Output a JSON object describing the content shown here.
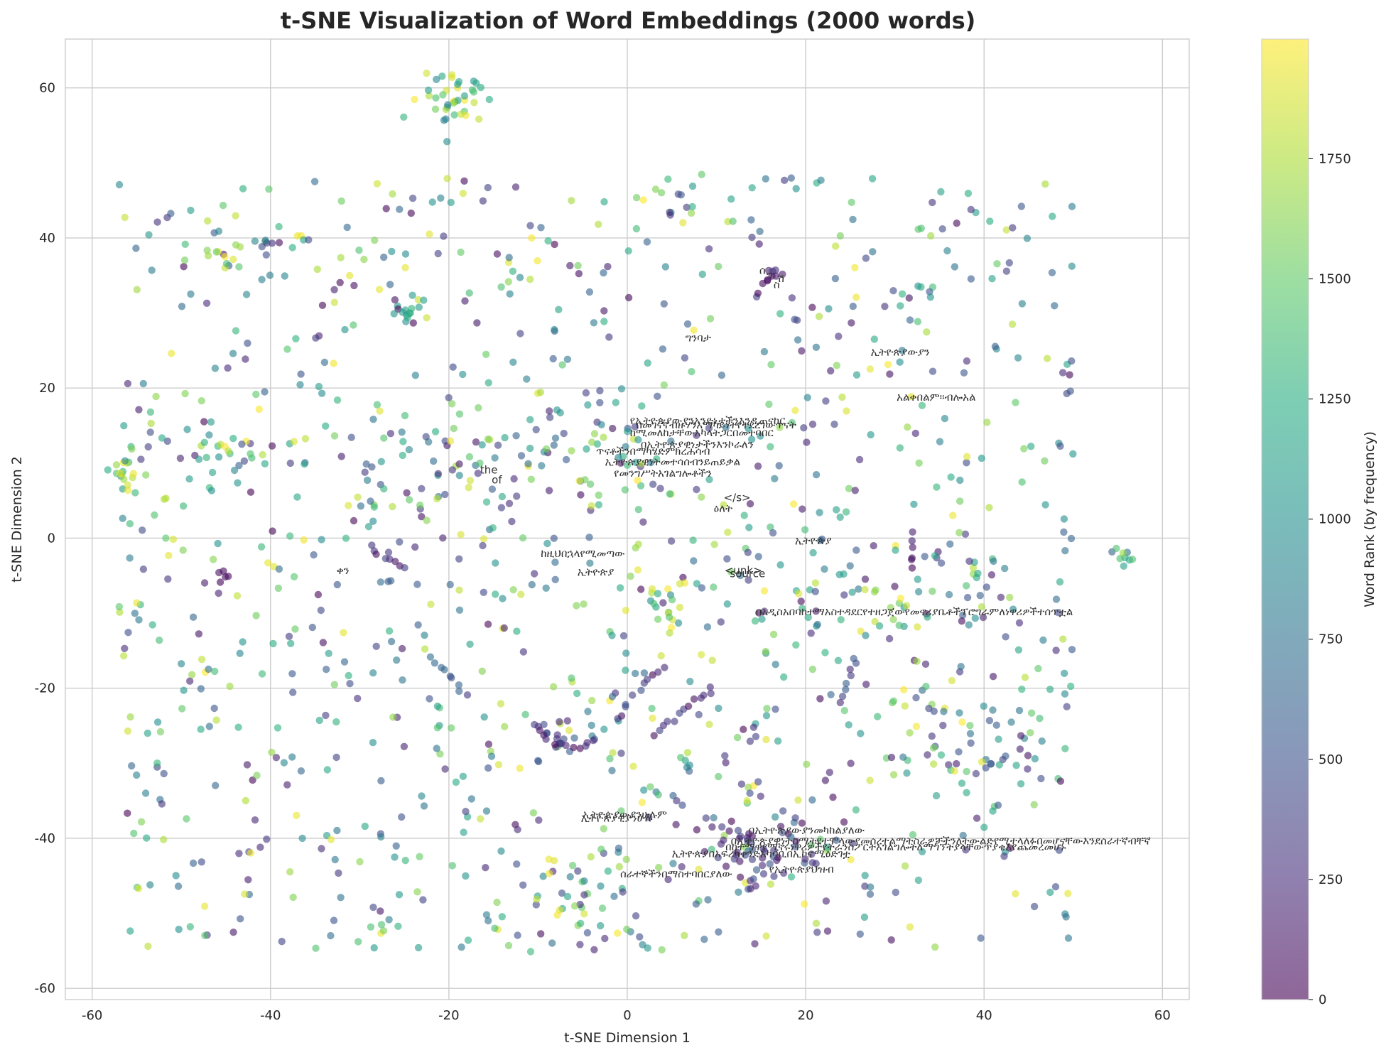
{
  "chart_data": {
    "type": "scatter",
    "title": "t-SNE Visualization of Word Embeddings (2000 words)",
    "xlabel": "t-SNE Dimension 1",
    "ylabel": "t-SNE Dimension 2",
    "xlim": [
      -63,
      63
    ],
    "ylim": [
      -61.5,
      66.5
    ],
    "xticks": [
      -60,
      -40,
      -20,
      0,
      20,
      40,
      60
    ],
    "xtick_labels": [
      "-60",
      "-40",
      "-20",
      "0",
      "20",
      "40",
      "60"
    ],
    "yticks": [
      -60,
      -40,
      -20,
      0,
      20,
      40,
      60
    ],
    "ytick_labels": [
      "-60",
      "-40",
      "-20",
      "0",
      "20",
      "40",
      "60"
    ],
    "grid": true,
    "colormap": "viridis",
    "point_alpha": 0.6,
    "colorbar": {
      "label": "Word Rank (by frequency)",
      "range": [
        0,
        1999
      ],
      "ticks": [
        0,
        250,
        500,
        750,
        1000,
        1250,
        1500,
        1750
      ],
      "tick_labels": [
        "0",
        "250",
        "500",
        "750",
        "1000",
        "1250",
        "1500",
        "1750"
      ]
    },
    "clusters": [
      {
        "x": -20,
        "y": 58,
        "n": 40,
        "spread": 2.2,
        "rank": [
          700,
          1999
        ]
      },
      {
        "x": -56,
        "y": 8.5,
        "n": 18,
        "spread": 1.2,
        "rank": [
          900,
          1999
        ]
      },
      {
        "x": -45,
        "y": 37.5,
        "n": 10,
        "spread": 1.0,
        "rank": [
          1300,
          1999
        ]
      },
      {
        "x": 55.5,
        "y": -2.5,
        "n": 9,
        "spread": 0.9,
        "rank": [
          600,
          1900
        ]
      },
      {
        "x": -24.5,
        "y": 30,
        "n": 12,
        "spread": 0.9,
        "rank": [
          1000,
          1300
        ]
      },
      {
        "x": -40,
        "y": 39.5,
        "n": 5,
        "spread": 0.6,
        "rank": [
          0,
          800
        ]
      },
      {
        "x": 15.5,
        "y": 34.5,
        "n": 8,
        "spread": 0.9,
        "rank": [
          0,
          200
        ]
      },
      {
        "x": 13,
        "y": -41.5,
        "n": 40,
        "spread": 2.8,
        "rank": [
          0,
          500
        ]
      },
      {
        "x": 17,
        "y": -42.5,
        "n": 20,
        "spread": 2.5,
        "rank": [
          0,
          700
        ]
      },
      {
        "x": 37,
        "y": -27,
        "n": 40,
        "spread": 3.8,
        "rank": [
          0,
          1999
        ]
      },
      {
        "x": -7,
        "y": -26,
        "n": 14,
        "spread": 1.5,
        "rank": [
          200,
          800
        ]
      },
      {
        "x": 4,
        "y": -10,
        "n": 20,
        "spread": 2.5,
        "rank": [
          800,
          1999
        ]
      },
      {
        "x": -20,
        "y": 11,
        "n": 30,
        "spread": 3.5,
        "rank": [
          0,
          1999
        ]
      },
      {
        "x": -4,
        "y": 12,
        "n": 40,
        "spread": 5.0,
        "rank": [
          0,
          1999
        ]
      },
      {
        "x": 37,
        "y": -5,
        "n": 30,
        "spread": 4.0,
        "rank": [
          0,
          1999
        ]
      },
      {
        "x": -45,
        "y": 11,
        "n": 12,
        "spread": 1.5,
        "rank": [
          1000,
          1999
        ]
      },
      {
        "x": -46,
        "y": -5,
        "n": 5,
        "spread": 0.8,
        "rank": [
          0,
          100
        ]
      },
      {
        "x": 6,
        "y": 46,
        "n": 10,
        "spread": 1.8,
        "rank": [
          0,
          1600
        ]
      },
      {
        "x": -4,
        "y": -47,
        "n": 30,
        "spread": 4.0,
        "rank": [
          0,
          1999
        ]
      },
      {
        "x": 20,
        "y": -8,
        "n": 25,
        "spread": 4.0,
        "rank": [
          0,
          1999
        ]
      }
    ],
    "scatter_regions": [
      {
        "x": [
          -57,
          50
        ],
        "y": [
          -55,
          48
        ],
        "n": 1100,
        "rank": [
          0,
          1999
        ]
      }
    ],
    "curves": [
      {
        "points": [
          [
            -10,
            -25
          ],
          [
            -9,
            -27
          ],
          [
            -7,
            -28
          ],
          [
            -5,
            -28
          ],
          [
            -4,
            -27
          ]
        ],
        "n": 12,
        "rank": [
          0,
          300
        ]
      },
      {
        "points": [
          [
            -1,
            -24
          ],
          [
            0,
            -22
          ],
          [
            2,
            -19
          ],
          [
            4,
            -17
          ]
        ],
        "n": 10,
        "rank": [
          0,
          500
        ]
      },
      {
        "points": [
          [
            3,
            -26
          ],
          [
            5,
            -24
          ],
          [
            7,
            -22
          ],
          [
            9,
            -20
          ]
        ],
        "n": 12,
        "rank": [
          0,
          400
        ]
      },
      {
        "points": [
          [
            24,
            -22
          ],
          [
            25,
            -19
          ],
          [
            25.5,
            -16
          ]
        ],
        "n": 8,
        "rank": [
          200,
          600
        ]
      },
      {
        "points": [
          [
            -29,
            -1
          ],
          [
            -27,
            -3
          ],
          [
            -25,
            -4
          ]
        ],
        "n": 8,
        "rank": [
          0,
          400
        ]
      },
      {
        "points": [
          [
            32,
            1
          ],
          [
            32,
            -2
          ],
          [
            32,
            -4
          ]
        ],
        "n": 6,
        "rank": [
          0,
          200
        ]
      },
      {
        "points": [
          [
            -22,
            -16
          ],
          [
            -20,
            -18
          ],
          [
            -19,
            -20
          ]
        ],
        "n": 8,
        "rank": [
          400,
          800
        ]
      }
    ],
    "annotations": [
      {
        "text": "ሰ",
        "x": 14.8,
        "y": 35.2
      },
      {
        "text": "ግ",
        "x": 15.6,
        "y": 34.6
      },
      {
        "text": "ሽ",
        "x": 16.8,
        "y": 34.1
      },
      {
        "text": "ስ",
        "x": 16.4,
        "y": 33.3
      },
      {
        "text": "ግንባታ",
        "x": 6.5,
        "y": 26.2
      },
      {
        "text": "ኢትዮጵያውያን",
        "x": 27.3,
        "y": 24.3
      },
      {
        "text": "አልቀበልም።ብሎአል",
        "x": 30.2,
        "y": 18.3
      },
      {
        "text": "የኢትዮጵያውያንአንድነታችንእንዲጠናከር",
        "x": 0.3,
        "y": 15.2
      },
      {
        "text": "በመገናኛብዙሃንአማካይነትየተደረገውጥናት",
        "x": 1.0,
        "y": 14.6
      },
      {
        "text": "ከሚመለከታቸውአካላትጋርበመተባበር",
        "x": 0.3,
        "y": 13.6
      },
      {
        "text": "በኢትዮጵያዊነታችንእንኮራለን",
        "x": 1.5,
        "y": 12.0
      },
      {
        "text": "ጥናቶችንበማካሄድምክረሐሳብ",
        "x": -3.5,
        "y": 11.1
      },
      {
        "text": "ኢትዮጵያዊነትመተሳሰብንይጠይቃል",
        "x": -2.5,
        "y": 9.7
      },
      {
        "text": "የመንግሥትአገልግሎቶችን",
        "x": -1.5,
        "y": 8.2
      },
      {
        "text": "the",
        "x": -16.5,
        "y": 8.6
      },
      {
        "text": "of",
        "x": -15.2,
        "y": 7.3
      },
      {
        "text": "</s>",
        "x": 10.8,
        "y": 4.9
      },
      {
        "text": "ዕለት",
        "x": 9.7,
        "y": 3.5
      },
      {
        "text": "ኢትዮጵያ",
        "x": 18.8,
        "y": -0.8
      },
      {
        "text": "ከዚህበኋላየሚመጣው",
        "x": -9.7,
        "y": -2.5
      },
      {
        "text": "ቀን",
        "x": -32.6,
        "y": -4.8
      },
      {
        "text": "ኢትዮጵያ",
        "x": -5.6,
        "y": -5.0
      },
      {
        "text": "<unk>",
        "x": 10.9,
        "y": -4.8
      },
      {
        "text": "source",
        "x": 11.5,
        "y": -5.2
      },
      {
        "text": "በአዲስአበባከተማአስተዳደርየተዘጋጀውየመኖሪያቤቶችፕሮግራምለነዋሪዎችተሰጥቷል",
        "x": 14.4,
        "y": -10.3
      },
      {
        "text": "ኢትዮጵያውያንሁሉም",
        "x": -5.0,
        "y": -37.3
      },
      {
        "text": "ኢትዮጵያዊያንሁሉ",
        "x": -5.2,
        "y": -37.8
      },
      {
        "text": "በኢትዮጵያውያንመካከልያለው",
        "x": 13.6,
        "y": -39.4
      },
      {
        "text": "በኢትዮጵያዊነትስሜትየተሞላውየመሰረተልማትስራዎቻችንለትውልድየሚተላለፉበመሆናቸውእንደሰራተኛብቸኛ",
        "x": 11.6,
        "y": -40.8
      },
      {
        "text": "በከተማዋየሚኖሩነዋሪዎችየትራንስፖርትአገልግሎትለማግኘትያላቸውጥያቄእየጨመረመሆኑ",
        "x": 11.0,
        "y": -41.6
      },
      {
        "text": "ኢትዮጵያበአፍሪካቀንድአካባቢበኢኮኖሚዕድገቷ",
        "x": 5.0,
        "y": -42.5
      },
      {
        "text": "የኢትዮጵያህዝብ",
        "x": 15.9,
        "y": -44.6
      },
      {
        "text": "ሰራተኞችንበማስተባበርያለው",
        "x": -0.8,
        "y": -45.2
      }
    ]
  }
}
